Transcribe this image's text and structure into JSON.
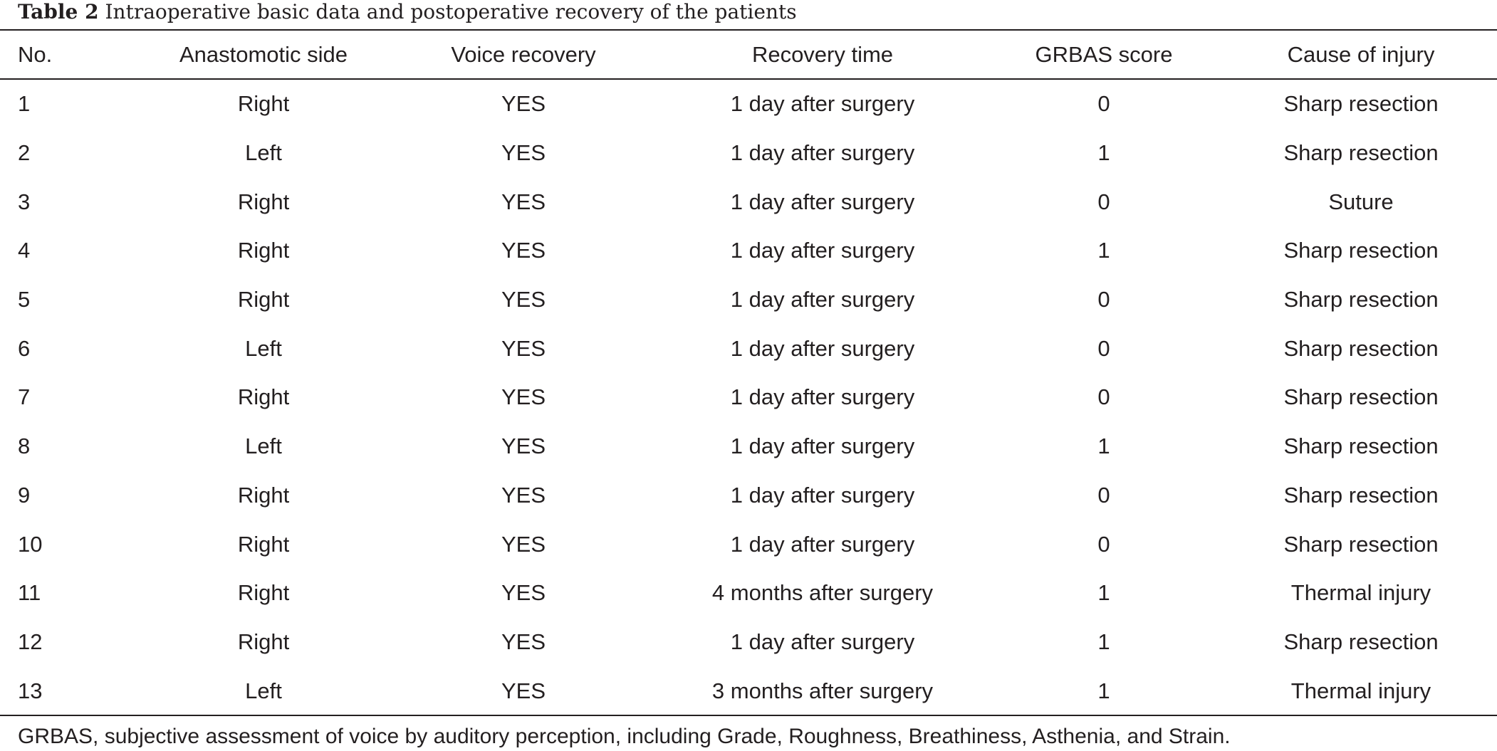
{
  "caption": {
    "label": "Table 2",
    "text": "Intraoperative basic data and postoperative recovery of the patients"
  },
  "table": {
    "headers": [
      "No.",
      "Anastomotic side",
      "Voice recovery",
      "Recovery time",
      "GRBAS score",
      "Cause of injury"
    ],
    "rows": [
      [
        "1",
        "Right",
        "YES",
        "1 day after surgery",
        "0",
        "Sharp resection"
      ],
      [
        "2",
        "Left",
        "YES",
        "1 day after surgery",
        "1",
        "Sharp resection"
      ],
      [
        "3",
        "Right",
        "YES",
        "1 day after surgery",
        "0",
        "Suture"
      ],
      [
        "4",
        "Right",
        "YES",
        "1 day after surgery",
        "1",
        "Sharp resection"
      ],
      [
        "5",
        "Right",
        "YES",
        "1 day after surgery",
        "0",
        "Sharp resection"
      ],
      [
        "6",
        "Left",
        "YES",
        "1 day after surgery",
        "0",
        "Sharp resection"
      ],
      [
        "7",
        "Right",
        "YES",
        "1 day after surgery",
        "0",
        "Sharp resection"
      ],
      [
        "8",
        "Left",
        "YES",
        "1 day after surgery",
        "1",
        "Sharp resection"
      ],
      [
        "9",
        "Right",
        "YES",
        "1 day after surgery",
        "0",
        "Sharp resection"
      ],
      [
        "10",
        "Right",
        "YES",
        "1 day after surgery",
        "0",
        "Sharp resection"
      ],
      [
        "11",
        "Right",
        "YES",
        "4 months after surgery",
        "1",
        "Thermal injury"
      ],
      [
        "12",
        "Right",
        "YES",
        "1 day after surgery",
        "1",
        "Sharp resection"
      ],
      [
        "13",
        "Left",
        "YES",
        "3 months after surgery",
        "1",
        "Thermal injury"
      ]
    ]
  },
  "footnote": "GRBAS, subjective assessment of voice by auditory perception, including Grade, Roughness, Breathiness, Asthenia, and Strain."
}
